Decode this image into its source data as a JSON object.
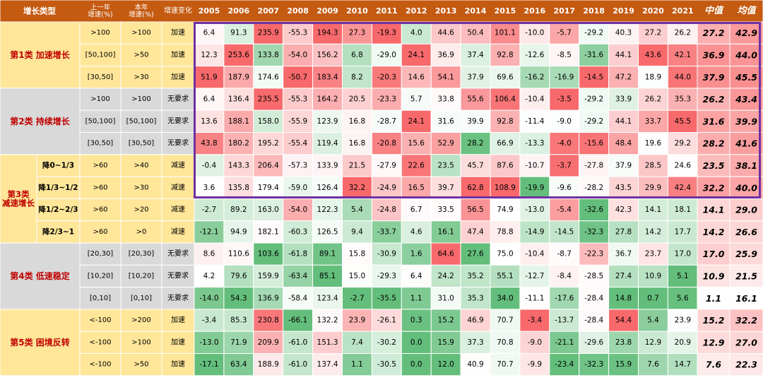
{
  "header": {
    "type_label": "增长类型",
    "prev_growth": "上一年\n增速(%)",
    "cur_growth": "本年\n增速(%)",
    "change": "增速变化",
    "years": [
      "2005",
      "2006",
      "2007",
      "2008",
      "2009",
      "2010",
      "2011",
      "2012",
      "2013",
      "2014",
      "2015",
      "2016",
      "2017",
      "2018",
      "2019",
      "2020",
      "2021"
    ],
    "median": "中值",
    "mean": "均值"
  },
  "groups": [
    {
      "label": "第1类  加速增长",
      "rows": [
        0,
        1,
        2
      ]
    },
    {
      "label": "第2类  持续增长",
      "rows": [
        3,
        4,
        5
      ]
    },
    {
      "label": "第3类\n减速增长",
      "rows": [
        6,
        7,
        8,
        9
      ]
    },
    {
      "label": "第4类  低速稳定",
      "rows": [
        10,
        11,
        12
      ]
    },
    {
      "label": "第5类  困境反转",
      "rows": [
        13,
        14,
        15
      ]
    }
  ],
  "colors": {
    "header_bg": "#c55a11",
    "header_text": "#ffffff",
    "group_bg_a": "#ffe699",
    "group_bg_b": "#d9d9d9",
    "group_text": "#c00000",
    "frame": "#7030a0",
    "high": "#f8696b",
    "mid": "#ffffff",
    "low": "#63be7b"
  },
  "chart_data": {
    "type": "heatmap",
    "columns": [
      "2005",
      "2006",
      "2007",
      "2008",
      "2009",
      "2010",
      "2011",
      "2012",
      "2013",
      "2014",
      "2015",
      "2016",
      "2017",
      "2018",
      "2019",
      "2020",
      "2021",
      "中值",
      "均值"
    ],
    "rows": [
      {
        "sub": "",
        "prev": ">100",
        "cur": ">100",
        "change": "加速",
        "values": [
          6.4,
          91.3,
          235.9,
          -55.3,
          194.3,
          27.3,
          -19.3,
          4.0,
          44.6,
          50.4,
          101.1,
          -10.0,
          -5.7,
          -29.2,
          40.3,
          27.2,
          26.2,
          27.2,
          42.9
        ]
      },
      {
        "sub": "",
        "prev": "[50,100]",
        "cur": ">50",
        "change": "加速",
        "values": [
          12.3,
          253.6,
          133.8,
          -54.0,
          156.2,
          6.8,
          -29.0,
          24.1,
          36.9,
          37.4,
          92.8,
          -12.6,
          -8.5,
          -31.6,
          44.1,
          43.6,
          42.1,
          36.9,
          44.0
        ]
      },
      {
        "sub": "",
        "prev": "[30,50]",
        "cur": ">30",
        "change": "加速",
        "values": [
          51.9,
          187.9,
          174.6,
          -50.7,
          183.4,
          8.2,
          -20.3,
          14.6,
          54.1,
          37.9,
          69.6,
          -16.2,
          -16.9,
          -14.5,
          47.2,
          18.9,
          44.0,
          37.9,
          45.5
        ]
      },
      {
        "sub": "",
        "prev": ">100",
        "cur": ">100",
        "change": "无要求",
        "values": [
          6.4,
          136.4,
          235.5,
          -55.3,
          164.2,
          20.5,
          -23.3,
          5.7,
          33.8,
          55.6,
          106.4,
          -10.4,
          -3.5,
          -29.2,
          33.9,
          26.2,
          35.3,
          26.2,
          43.4
        ]
      },
      {
        "sub": "",
        "prev": "[50,100]",
        "cur": "[50,100]",
        "change": "无要求",
        "values": [
          13.6,
          188.1,
          158.0,
          -55.9,
          123.9,
          16.8,
          -28.7,
          24.1,
          31.6,
          39.9,
          92.8,
          -11.4,
          -9.0,
          -29.2,
          44.1,
          33.7,
          45.5,
          31.6,
          39.9
        ]
      },
      {
        "sub": "",
        "prev": "[30,50]",
        "cur": "[30,50]",
        "change": "无要求",
        "values": [
          43.8,
          180.2,
          195.2,
          -55.4,
          119.4,
          16.8,
          -20.8,
          15.6,
          52.9,
          28.2,
          66.9,
          -13.3,
          -4.0,
          -15.6,
          48.4,
          19.6,
          29.2,
          28.2,
          41.6
        ]
      },
      {
        "sub": "降0~1/3",
        "prev": ">60",
        "cur": ">40",
        "change": "减速",
        "values": [
          -0.4,
          143.3,
          206.4,
          -57.3,
          133.9,
          21.5,
          -27.9,
          22.6,
          23.5,
          45.7,
          87.6,
          -10.7,
          -3.7,
          -27.8,
          37.9,
          28.5,
          24.6,
          23.5,
          38.1
        ]
      },
      {
        "sub": "降1/3~1/2",
        "prev": ">60",
        "cur": ">30",
        "change": "减速",
        "values": [
          3.6,
          135.8,
          179.4,
          -59.0,
          126.4,
          32.2,
          -24.9,
          16.5,
          39.7,
          62.8,
          108.9,
          -19.9,
          -9.6,
          -28.2,
          43.5,
          29.9,
          42.4,
          32.2,
          40.0
        ]
      },
      {
        "sub": "降1/2~2/3",
        "prev": ">60",
        "cur": ">20",
        "change": "减速",
        "values": [
          -2.7,
          89.2,
          163.0,
          -54.0,
          122.3,
          5.4,
          -24.8,
          6.7,
          33.5,
          56.5,
          74.9,
          -13.0,
          -5.4,
          -32.6,
          42.3,
          14.1,
          18.1,
          14.1,
          29.0
        ]
      },
      {
        "sub": "降2/3~1",
        "prev": ">60",
        "cur": ">0",
        "change": "减速",
        "values": [
          -12.1,
          94.9,
          182.1,
          -60.3,
          126.5,
          9.4,
          -33.7,
          4.6,
          16.1,
          47.4,
          78.8,
          -14.9,
          -14.5,
          -32.3,
          27.8,
          14.2,
          17.7,
          14.2,
          26.6
        ]
      },
      {
        "sub": "",
        "prev": "[20,30]",
        "cur": "[20,30]",
        "change": "无要求",
        "values": [
          8.6,
          110.6,
          103.6,
          -61.8,
          89.1,
          15.8,
          -30.9,
          1.6,
          64.6,
          27.6,
          75.0,
          -10.4,
          -8.7,
          -22.3,
          36.7,
          23.7,
          17.0,
          17.0,
          25.9
        ]
      },
      {
        "sub": "",
        "prev": "[10,20]",
        "cur": "[10,20]",
        "change": "无要求",
        "values": [
          4.2,
          79.6,
          159.9,
          -63.4,
          85.1,
          15.0,
          -29.3,
          6.4,
          24.2,
          35.2,
          55.1,
          -12.7,
          -8.4,
          -28.5,
          27.4,
          10.9,
          5.1,
          10.9,
          21.5
        ]
      },
      {
        "sub": "",
        "prev": "[0,10]",
        "cur": "[0,10]",
        "change": "无要求",
        "values": [
          -14.0,
          54.3,
          136.9,
          -58.4,
          123.4,
          -2.7,
          -35.5,
          1.1,
          31.0,
          35.3,
          34.0,
          -11.1,
          -17.6,
          -28.4,
          14.8,
          0.7,
          5.6,
          1.1,
          16.1
        ]
      },
      {
        "sub": "",
        "prev": "<-100",
        "cur": ">200",
        "change": "加速",
        "values": [
          -3.4,
          85.3,
          230.8,
          -66.1,
          132.2,
          23.9,
          -26.1,
          0.3,
          15.2,
          46.9,
          70.7,
          -3.4,
          -13.7,
          -28.4,
          54.4,
          5.4,
          23.9,
          15.2,
          32.2
        ]
      },
      {
        "sub": "",
        "prev": "<-100",
        "cur": ">100",
        "change": "加速",
        "values": [
          -13.0,
          71.9,
          209.9,
          -61.0,
          151.3,
          7.4,
          -30.2,
          0.0,
          15.9,
          37.3,
          70.8,
          -9.0,
          -21.1,
          -29.6,
          23.8,
          12.9,
          20.9,
          12.9,
          27.0
        ]
      },
      {
        "sub": "",
        "prev": "<-100",
        "cur": ">50",
        "change": "加速",
        "values": [
          -17.1,
          63.4,
          188.9,
          -61.0,
          137.4,
          1.1,
          -30.5,
          0.0,
          12.0,
          40.9,
          70.7,
          -9.9,
          -23.4,
          -32.3,
          15.9,
          7.6,
          14.7,
          7.6,
          22.3
        ]
      }
    ],
    "color_scale": "per-column: green (low) → white (median) → red (high)"
  }
}
